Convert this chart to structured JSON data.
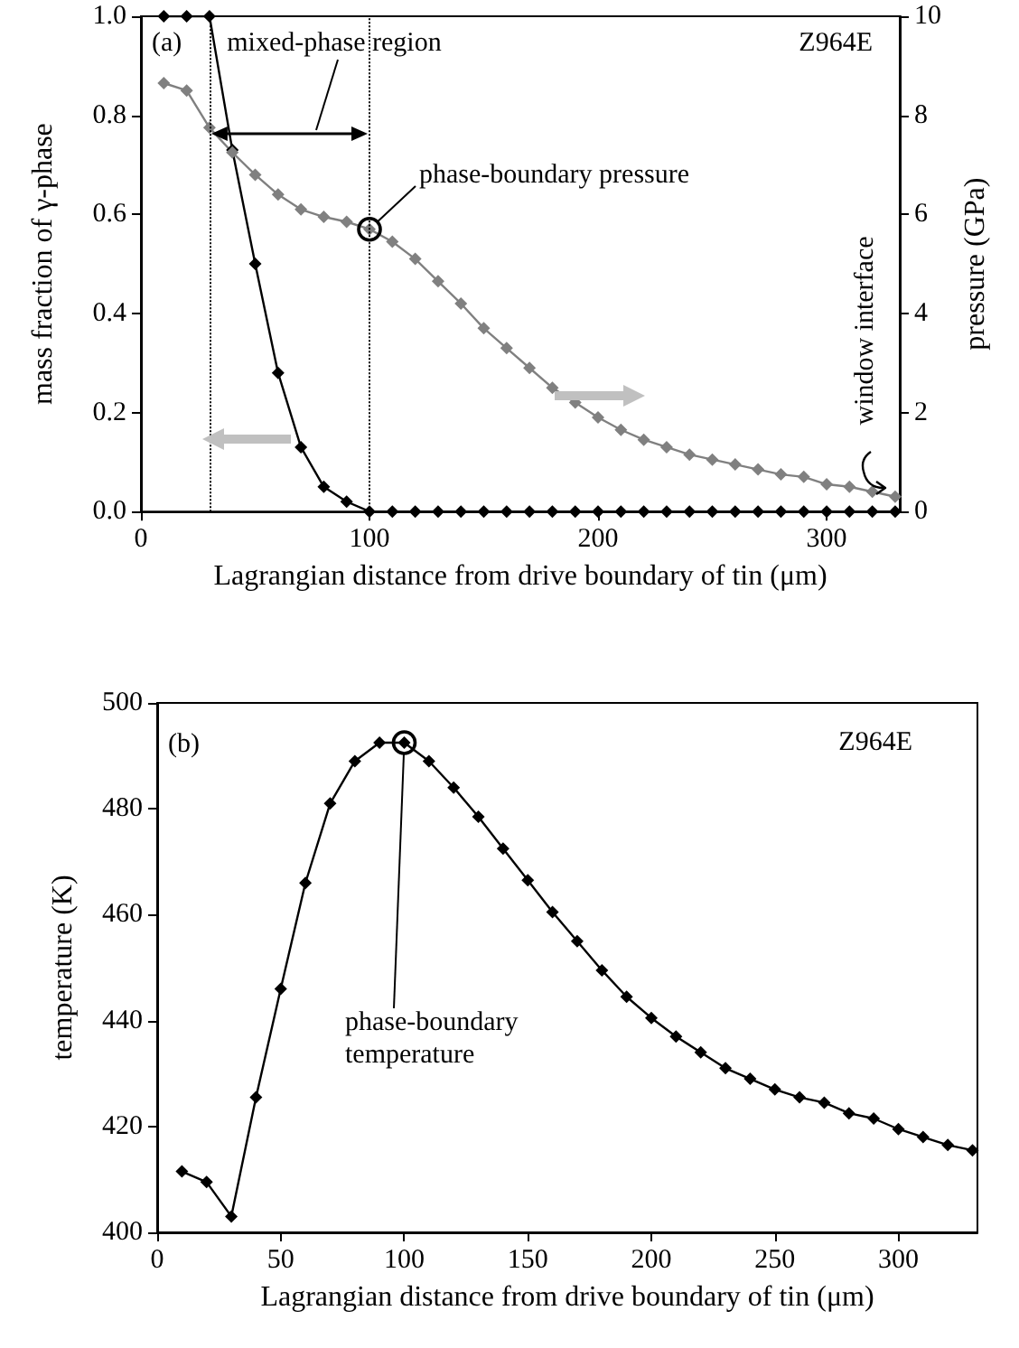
{
  "chart_data": [
    {
      "type": "line",
      "xlabel": "Lagrangian distance from drive boundary of tin (μm)",
      "ylabel": "mass fraction of γ-phase",
      "y2label": "pressure (GPa)",
      "x": [
        10,
        20,
        30,
        40,
        50,
        60,
        70,
        80,
        90,
        100,
        110,
        120,
        130,
        140,
        150,
        160,
        170,
        180,
        190,
        200,
        210,
        220,
        230,
        240,
        250,
        260,
        270,
        280,
        290,
        300,
        310,
        320,
        330
      ],
      "series": [
        {
          "color": "#000000",
          "values": [
            1.0,
            1.0,
            1.0,
            0.73,
            0.5,
            0.28,
            0.13,
            0.05,
            0.02,
            0,
            0,
            0,
            0,
            0,
            0,
            0,
            0,
            0,
            0,
            0,
            0,
            0,
            0,
            0,
            0,
            0,
            0,
            0,
            0,
            0,
            0,
            0,
            0
          ]
        },
        {
          "color": "#808080",
          "axis": "y2",
          "values": [
            8.65,
            8.5,
            7.75,
            7.25,
            6.8,
            6.4,
            6.1,
            5.95,
            5.85,
            5.7,
            5.45,
            5.1,
            4.65,
            4.2,
            3.7,
            3.3,
            2.9,
            2.5,
            2.2,
            1.9,
            1.65,
            1.45,
            1.3,
            1.15,
            1.05,
            0.95,
            0.85,
            0.75,
            0.7,
            0.55,
            0.5,
            0.4,
            0.3
          ]
        }
      ],
      "xlim": [
        0,
        332
      ],
      "xticks": [
        0,
        100,
        200,
        300
      ],
      "ylim": [
        0,
        1
      ],
      "yticks": [
        {
          "value": 0,
          "label": "0.0"
        },
        {
          "value": 0.2,
          "label": "0.2"
        },
        {
          "value": 0.4,
          "label": "0.4"
        },
        {
          "value": 0.6,
          "label": "0.6"
        },
        {
          "value": 0.8,
          "label": "0.8"
        },
        {
          "value": 1,
          "label": "1.0"
        }
      ],
      "y2lim": [
        0,
        10
      ],
      "y2ticks": [
        0,
        2,
        4,
        6,
        8,
        10
      ],
      "ref_lines": [
        {
          "axis": "x",
          "value": 30,
          "color": "#000000",
          "line_style": "dotted"
        },
        {
          "axis": "x",
          "value": 100,
          "color": "#000000",
          "line_style": "dotted"
        }
      ],
      "annotations": [
        "(a)",
        "mixed-phase region",
        "Z964E",
        {
          "text": "phase-boundary pressure",
          "x": 100,
          "y": 0.57
        },
        "window interface"
      ],
      "marker": "diamond",
      "line_style": "solid",
      "grid": false
    },
    {
      "type": "line",
      "xlabel": "Lagrangian distance from drive boundary of tin (μm)",
      "ylabel": "temperature (K)",
      "x": [
        10,
        20,
        30,
        40,
        50,
        60,
        70,
        80,
        90,
        100,
        110,
        120,
        130,
        140,
        150,
        160,
        170,
        180,
        190,
        200,
        210,
        220,
        230,
        240,
        250,
        260,
        270,
        280,
        290,
        300,
        310,
        320,
        330
      ],
      "series": [
        {
          "color": "#000000",
          "values": [
            411.5,
            409.5,
            403,
            425.5,
            446,
            466,
            481,
            489,
            492.5,
            492.5,
            489,
            484,
            478.5,
            472.5,
            466.5,
            460.5,
            455,
            449.5,
            444.5,
            440.5,
            437,
            434,
            431,
            429,
            427,
            425.5,
            424.5,
            422.5,
            421.5,
            419.5,
            418,
            416.5,
            415.5
          ]
        }
      ],
      "xlim": [
        0,
        332
      ],
      "xticks": [
        0,
        50,
        100,
        150,
        200,
        250,
        300
      ],
      "ylim": [
        400,
        500
      ],
      "yticks": [
        400,
        420,
        440,
        460,
        480,
        500
      ],
      "annotations": [
        "(b)",
        "Z964E",
        {
          "text": "phase-boundary temperature",
          "x": 100,
          "y": 492.5
        }
      ],
      "marker": "diamond",
      "line_style": "solid",
      "grid": false
    }
  ]
}
